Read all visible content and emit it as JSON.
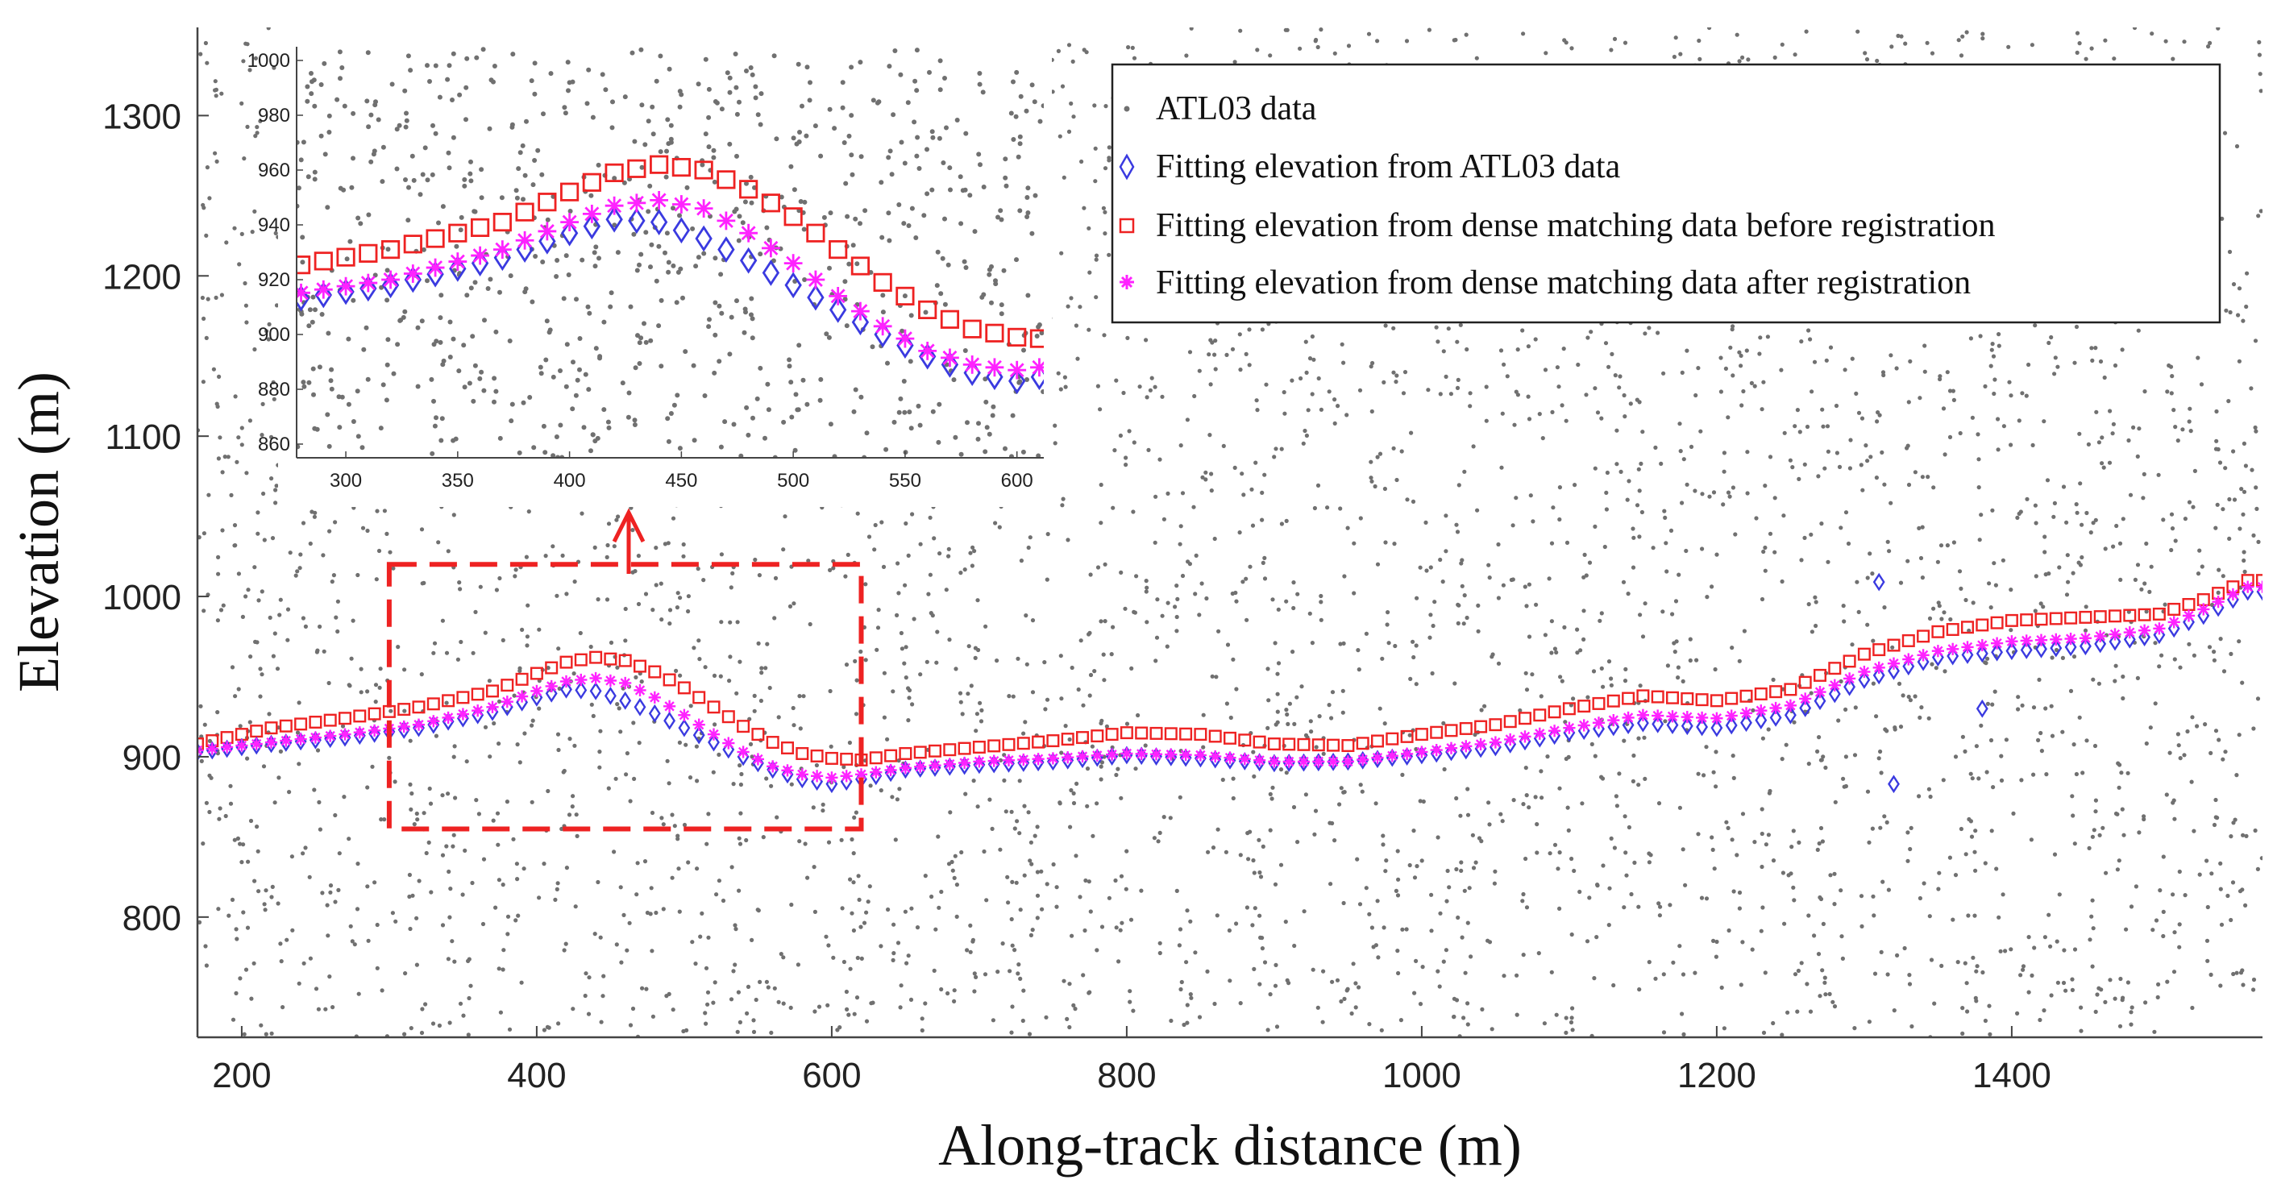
{
  "chart_data": {
    "type": "scatter",
    "xlabel": "Along-track distance (m)",
    "ylabel": "Elevation (m)",
    "xlim": [
      170,
      1570
    ],
    "ylim": [
      725,
      1355
    ],
    "xticks": [
      "200",
      "400",
      "600",
      "800",
      "1000",
      "1200",
      "1400"
    ],
    "yticks": [
      "800",
      "900",
      "1000",
      "1100",
      "1200",
      "1300"
    ],
    "grid": false,
    "legend_position": "top-right",
    "series": [
      {
        "name": "ATL03 data",
        "marker": "dot",
        "color": "#707070",
        "note_values": "background photons scattered uniformly over the whole plot window"
      },
      {
        "name": "Fitting elevation from ATL03 data",
        "marker": "diamond",
        "color": "#3a3ae0",
        "x": [
          170,
          220,
          270,
          320,
          370,
          400,
          420,
          440,
          460,
          480,
          500,
          520,
          540,
          560,
          580,
          600,
          620,
          650,
          700,
          750,
          800,
          850,
          900,
          950,
          1000,
          1050,
          1100,
          1150,
          1200,
          1250,
          1300,
          1350,
          1400,
          1450,
          1500,
          1530,
          1560
        ],
        "values": [
          903,
          908,
          912,
          918,
          928,
          937,
          942,
          941,
          935,
          927,
          918,
          909,
          900,
          892,
          886,
          883,
          886,
          892,
          895,
          897,
          901,
          899,
          896,
          897,
          901,
          906,
          915,
          921,
          918,
          926,
          948,
          962,
          966,
          969,
          976,
          988,
          1003
        ]
      },
      {
        "name": "Fitting elevation from dense matching data before registration",
        "marker": "square",
        "color": "#ee2222",
        "x": [
          170,
          220,
          270,
          320,
          370,
          400,
          420,
          440,
          460,
          480,
          500,
          520,
          540,
          560,
          580,
          600,
          620,
          650,
          700,
          750,
          800,
          850,
          900,
          950,
          1000,
          1050,
          1100,
          1150,
          1200,
          1250,
          1300,
          1350,
          1400,
          1450,
          1500,
          1530,
          1560
        ],
        "values": [
          908,
          918,
          924,
          931,
          941,
          952,
          959,
          962,
          960,
          953,
          943,
          931,
          919,
          909,
          902,
          899,
          898,
          902,
          906,
          910,
          915,
          914,
          908,
          907,
          914,
          920,
          930,
          938,
          935,
          942,
          964,
          978,
          985,
          987,
          989,
          998,
          1010
        ]
      },
      {
        "name": "Fitting elevation from dense matching data after registration",
        "marker": "asterisk",
        "color": "#ff22ff",
        "x": [
          170,
          220,
          270,
          320,
          370,
          400,
          420,
          440,
          460,
          480,
          500,
          520,
          540,
          560,
          580,
          600,
          620,
          650,
          700,
          750,
          800,
          850,
          900,
          950,
          1000,
          1050,
          1100,
          1150,
          1200,
          1250,
          1300,
          1350,
          1400,
          1450,
          1500,
          1530,
          1560
        ],
        "values": [
          904,
          909,
          914,
          920,
          931,
          941,
          947,
          949,
          946,
          937,
          926,
          914,
          903,
          894,
          889,
          887,
          889,
          893,
          897,
          899,
          902,
          901,
          897,
          897,
          903,
          909,
          918,
          926,
          924,
          932,
          953,
          966,
          972,
          974,
          980,
          992,
          1006
        ]
      }
    ],
    "highlight_box": {
      "x": [
        300,
        620
      ],
      "y": [
        855,
        1020
      ],
      "color": "#ee2222",
      "style": "dashed"
    },
    "inset": {
      "xlim": [
        278,
        612
      ],
      "ylim": [
        855,
        1005
      ],
      "xticks": [
        "300",
        "350",
        "400",
        "450",
        "500",
        "550",
        "600"
      ],
      "yticks": [
        "860",
        "880",
        "900",
        "920",
        "940",
        "960",
        "980",
        "1000"
      ]
    }
  }
}
